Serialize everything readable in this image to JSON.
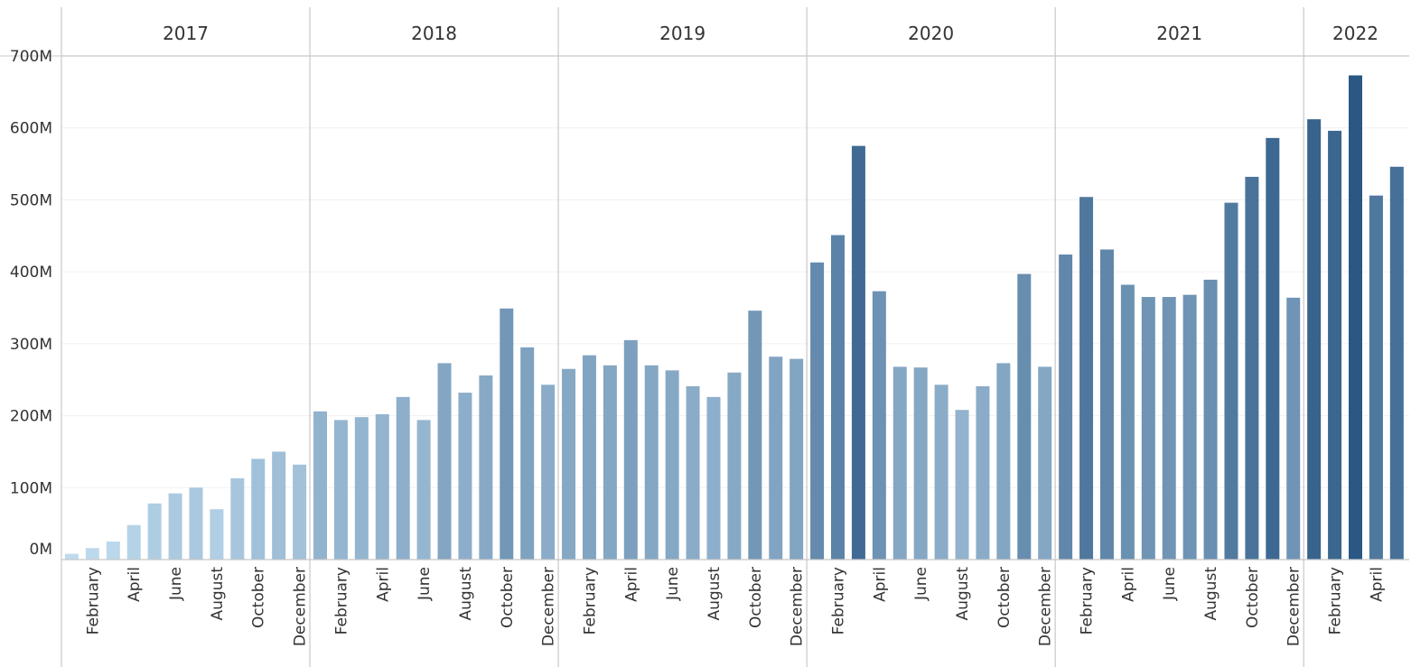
{
  "chart_data": {
    "type": "bar",
    "title": "",
    "xlabel": "",
    "ylabel": "",
    "ylim": [
      0,
      700000000
    ],
    "y_ticks": [
      {
        "value": 0,
        "label": "0M"
      },
      {
        "value": 100000000,
        "label": "100M"
      },
      {
        "value": 200000000,
        "label": "200M"
      },
      {
        "value": 300000000,
        "label": "300M"
      },
      {
        "value": 400000000,
        "label": "400M"
      },
      {
        "value": 500000000,
        "label": "500M"
      },
      {
        "value": 600000000,
        "label": "600M"
      },
      {
        "value": 700000000,
        "label": "700M"
      }
    ],
    "grid": true,
    "legend": "none",
    "color_scale": {
      "low": "#c0dcef",
      "high": "#2a5783"
    },
    "years": [
      {
        "year": "2017",
        "months": [
          "January",
          "February",
          "March",
          "April",
          "May",
          "June",
          "July",
          "August",
          "September",
          "October",
          "November",
          "December"
        ],
        "values": [
          8000000,
          16000000,
          25000000,
          48000000,
          78000000,
          92000000,
          100000000,
          70000000,
          113000000,
          140000000,
          150000000,
          132000000
        ]
      },
      {
        "year": "2018",
        "months": [
          "January",
          "February",
          "March",
          "April",
          "May",
          "June",
          "July",
          "August",
          "September",
          "October",
          "November",
          "December"
        ],
        "values": [
          206000000,
          194000000,
          198000000,
          202000000,
          226000000,
          194000000,
          273000000,
          232000000,
          256000000,
          349000000,
          295000000,
          243000000
        ]
      },
      {
        "year": "2019",
        "months": [
          "January",
          "February",
          "March",
          "April",
          "May",
          "June",
          "July",
          "August",
          "September",
          "October",
          "November",
          "December"
        ],
        "values": [
          265000000,
          284000000,
          270000000,
          305000000,
          270000000,
          263000000,
          241000000,
          226000000,
          260000000,
          346000000,
          282000000,
          279000000
        ]
      },
      {
        "year": "2020",
        "months": [
          "January",
          "February",
          "March",
          "April",
          "May",
          "June",
          "July",
          "August",
          "September",
          "October",
          "November",
          "December"
        ],
        "values": [
          413000000,
          451000000,
          575000000,
          373000000,
          268000000,
          267000000,
          243000000,
          208000000,
          241000000,
          273000000,
          397000000,
          268000000
        ]
      },
      {
        "year": "2021",
        "months": [
          "January",
          "February",
          "March",
          "April",
          "May",
          "June",
          "July",
          "August",
          "September",
          "October",
          "November",
          "December"
        ],
        "values": [
          424000000,
          504000000,
          431000000,
          382000000,
          365000000,
          365000000,
          368000000,
          389000000,
          496000000,
          532000000,
          586000000,
          364000000
        ]
      },
      {
        "year": "2022",
        "months": [
          "January",
          "February",
          "March",
          "April",
          "May"
        ],
        "values": [
          612000000,
          596000000,
          673000000,
          506000000,
          546000000
        ]
      }
    ],
    "shown_month_labels": [
      "February",
      "April",
      "June",
      "August",
      "October",
      "December"
    ]
  }
}
